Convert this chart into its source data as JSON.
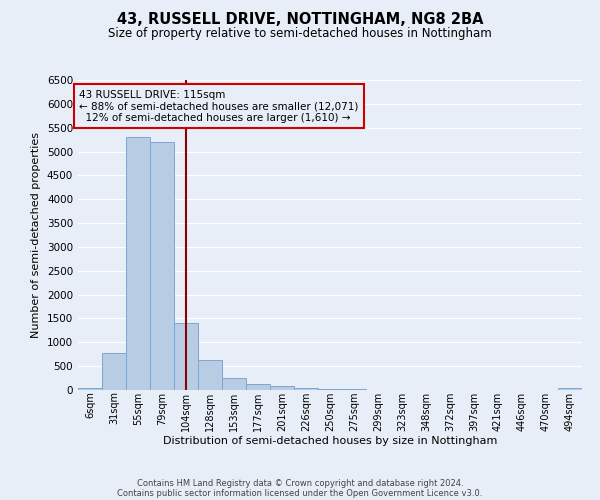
{
  "title": "43, RUSSELL DRIVE, NOTTINGHAM, NG8 2BA",
  "subtitle": "Size of property relative to semi-detached houses in Nottingham",
  "xlabel": "Distribution of semi-detached houses by size in Nottingham",
  "ylabel": "Number of semi-detached properties",
  "bin_labels": [
    "6sqm",
    "31sqm",
    "55sqm",
    "79sqm",
    "104sqm",
    "128sqm",
    "153sqm",
    "177sqm",
    "201sqm",
    "226sqm",
    "250sqm",
    "275sqm",
    "299sqm",
    "323sqm",
    "348sqm",
    "372sqm",
    "397sqm",
    "421sqm",
    "446sqm",
    "470sqm",
    "494sqm"
  ],
  "bar_heights": [
    50,
    780,
    5300,
    5200,
    1400,
    630,
    260,
    120,
    80,
    50,
    30,
    20,
    10,
    5,
    0,
    0,
    0,
    0,
    0,
    0,
    50
  ],
  "bar_color": "#b8cce4",
  "bar_edge_color": "#7ba7d3",
  "property_line_x": 4.5,
  "property_sqm": 115,
  "pct_smaller": 88,
  "count_smaller": "12,071",
  "pct_larger": 12,
  "count_larger": "1,610",
  "ylim": [
    0,
    6500
  ],
  "yticks": [
    0,
    500,
    1000,
    1500,
    2000,
    2500,
    3000,
    3500,
    4000,
    4500,
    5000,
    5500,
    6000,
    6500
  ],
  "bg_color": "#e8eef7",
  "grid_color": "#ffffff",
  "annotation_box_color": "#cc0000",
  "footer_line1": "Contains HM Land Registry data © Crown copyright and database right 2024.",
  "footer_line2": "Contains public sector information licensed under the Open Government Licence v3.0."
}
